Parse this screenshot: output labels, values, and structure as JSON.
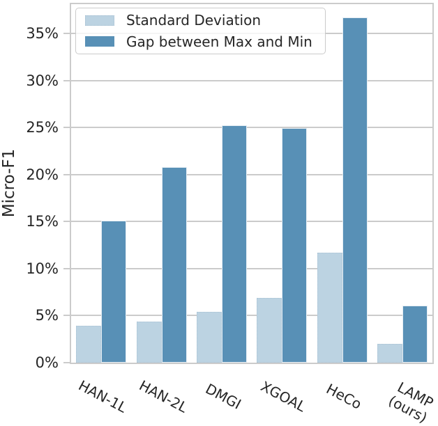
{
  "chart_data": {
    "type": "bar",
    "title": "",
    "categories": [
      "HAN-1L",
      "HAN-2L",
      "DMGI",
      "XGOAL",
      "HeCo",
      "LAMP\n(ours)"
    ],
    "series": [
      {
        "name": "Standard Deviation",
        "color": "#bcd3e2",
        "values": [
          3.9,
          4.4,
          5.4,
          6.9,
          11.7,
          2.0
        ]
      },
      {
        "name": "Gap between Max and Min",
        "color": "#5890b6",
        "values": [
          15.1,
          20.8,
          25.2,
          24.9,
          36.7,
          6.1
        ]
      }
    ],
    "xlabel": "",
    "ylabel": "Micro-F1",
    "ylim": [
      0,
      38.4
    ],
    "yticks": [
      0,
      5,
      10,
      15,
      20,
      25,
      30,
      35
    ],
    "ytick_labels": [
      "0%",
      "5%",
      "10%",
      "15%",
      "20%",
      "25%",
      "30%",
      "35%"
    ],
    "grid": true,
    "legend_position": "upper left"
  },
  "colors": {
    "bar_light": "#bcd3e2",
    "bar_dark": "#5890b6",
    "gridline": "#cbcbcb",
    "spine": "#cbcbcb",
    "text": "#262626",
    "background": "#ffffff"
  }
}
